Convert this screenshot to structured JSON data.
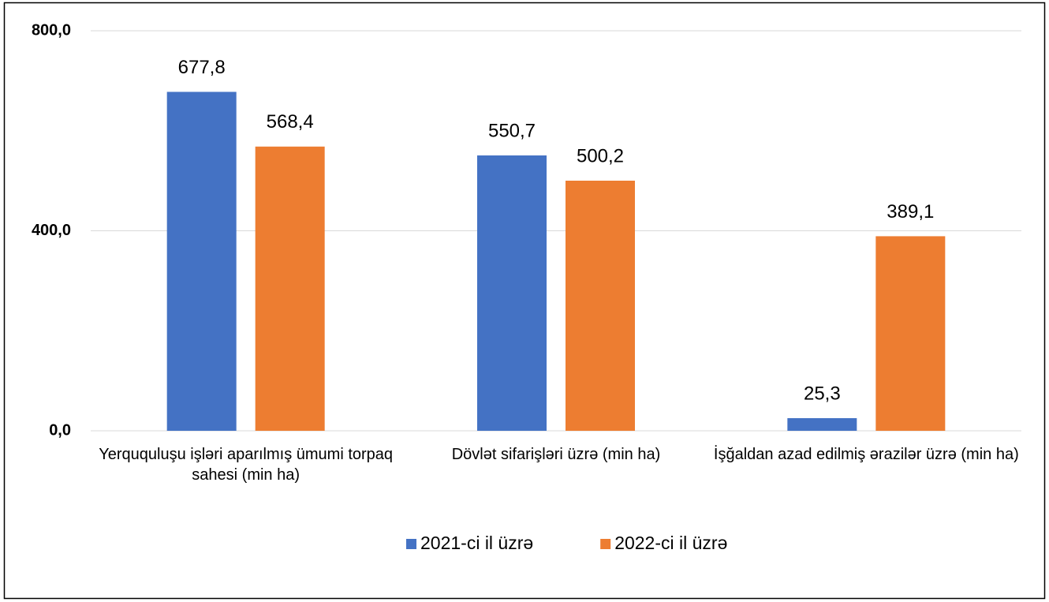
{
  "chart_data": {
    "type": "bar",
    "categories": [
      "Yerququluşu işləri aparılmış ümumi torpaq sahesi (min ha)",
      "Dövlət sifarişləri üzrə (min ha)",
      "İşğaldan azad edilmiş ərazilər üzrə (min ha)"
    ],
    "series": [
      {
        "name": "2021-ci il üzrə",
        "color": "#4472c4",
        "values": [
          677.8,
          550.7,
          25.3
        ],
        "value_labels": [
          "677,8",
          "550,7",
          "25,3"
        ]
      },
      {
        "name": "2022-ci il üzrə",
        "color": "#ed7d31",
        "values": [
          568.4,
          500.2,
          389.1
        ],
        "value_labels": [
          "568,4",
          "500,2",
          "389,1"
        ]
      }
    ],
    "ylim": [
      0,
      800
    ],
    "yticks": [
      {
        "value": 0,
        "label": "0,0"
      },
      {
        "value": 400,
        "label": "400,0"
      },
      {
        "value": 800,
        "label": "800,0"
      }
    ],
    "grid": true,
    "legend": "bottom"
  }
}
